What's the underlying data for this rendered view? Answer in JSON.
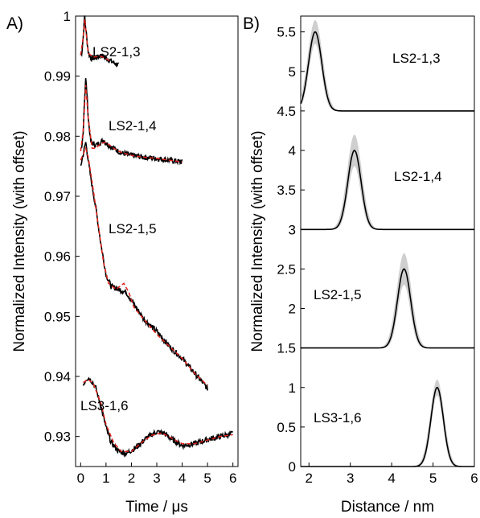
{
  "chart_data": [
    {
      "panel": "A)",
      "type": "line",
      "xlabel": "Time / μs",
      "ylabel": "Normalized Intensity (with offset)",
      "xlim": [
        -0.2,
        6.2
      ],
      "ylim": [
        0.925,
        1.0
      ],
      "xticks": [
        0,
        1,
        2,
        3,
        4,
        5,
        6
      ],
      "yticks": [
        0.93,
        0.94,
        0.95,
        0.96,
        0.97,
        0.98,
        0.99,
        1
      ],
      "ytick_labels": [
        "0.93",
        "0.94",
        "0.95",
        "0.96",
        "0.97",
        "0.98",
        "0.99",
        "1"
      ],
      "series_colors": {
        "data": "#000000",
        "fit": "#e0201b"
      },
      "series": [
        {
          "label": "LS2-1,3",
          "data": [
            [
              0,
              0.9935
            ],
            [
              0.05,
              0.994
            ],
            [
              0.1,
              0.9965
            ],
            [
              0.13,
              0.9985
            ],
            [
              0.16,
              1.0
            ],
            [
              0.2,
              0.998
            ],
            [
              0.3,
              0.994
            ],
            [
              0.4,
              0.993
            ],
            [
              0.6,
              0.993
            ],
            [
              0.8,
              0.9935
            ],
            [
              1.0,
              0.993
            ],
            [
              1.2,
              0.9925
            ],
            [
              1.5,
              0.9918
            ]
          ],
          "fit": [
            [
              0,
              0.9935
            ],
            [
              0.1,
              0.9965
            ],
            [
              0.16,
              0.9995
            ],
            [
              0.22,
              0.997
            ],
            [
              0.3,
              0.9938
            ],
            [
              0.5,
              0.9932
            ],
            [
              0.8,
              0.9933
            ],
            [
              1.0,
              0.9929
            ],
            [
              1.2,
              0.9924
            ]
          ]
        },
        {
          "label": "LS2-1,4",
          "data": [
            [
              0,
              0.9775
            ],
            [
              0.05,
              0.978
            ],
            [
              0.1,
              0.981
            ],
            [
              0.15,
              0.986
            ],
            [
              0.2,
              0.9895
            ],
            [
              0.25,
              0.987
            ],
            [
              0.3,
              0.983
            ],
            [
              0.4,
              0.979
            ],
            [
              0.6,
              0.9785
            ],
            [
              0.8,
              0.979
            ],
            [
              0.9,
              0.9795
            ],
            [
              1.0,
              0.9788
            ],
            [
              1.3,
              0.978
            ],
            [
              1.6,
              0.9772
            ],
            [
              2.0,
              0.9768
            ],
            [
              2.5,
              0.9765
            ],
            [
              3.0,
              0.9763
            ],
            [
              3.5,
              0.976
            ],
            [
              4.0,
              0.9757
            ]
          ],
          "fit": [
            [
              0,
              0.9775
            ],
            [
              0.1,
              0.981
            ],
            [
              0.2,
              0.9885
            ],
            [
              0.3,
              0.983
            ],
            [
              0.45,
              0.978
            ],
            [
              0.6,
              0.978
            ],
            [
              0.8,
              0.9788
            ],
            [
              1.0,
              0.979
            ],
            [
              1.3,
              0.978
            ],
            [
              1.6,
              0.9773
            ],
            [
              2.0,
              0.9768
            ],
            [
              2.5,
              0.9765
            ],
            [
              3.0,
              0.9763
            ],
            [
              3.5,
              0.976
            ],
            [
              4.0,
              0.9757
            ]
          ]
        },
        {
          "label": "LS2-1,5",
          "data": [
            [
              0,
              0.975
            ],
            [
              0.05,
              0.976
            ],
            [
              0.1,
              0.977
            ],
            [
              0.2,
              0.979
            ],
            [
              0.3,
              0.976
            ],
            [
              0.4,
              0.973
            ],
            [
              0.6,
              0.968
            ],
            [
              0.8,
              0.962
            ],
            [
              1.0,
              0.957
            ],
            [
              1.2,
              0.955
            ],
            [
              1.5,
              0.9545
            ],
            [
              1.8,
              0.954
            ],
            [
              2.1,
              0.952
            ],
            [
              2.5,
              0.9495
            ],
            [
              3.0,
              0.9475
            ],
            [
              3.5,
              0.945
            ],
            [
              4.0,
              0.943
            ],
            [
              4.5,
              0.9405
            ],
            [
              5.0,
              0.938
            ]
          ],
          "fit": [
            [
              0,
              0.976
            ],
            [
              0.1,
              0.977
            ],
            [
              0.2,
              0.978
            ],
            [
              0.3,
              0.9765
            ],
            [
              0.5,
              0.971
            ],
            [
              0.7,
              0.965
            ],
            [
              0.9,
              0.959
            ],
            [
              1.1,
              0.9555
            ],
            [
              1.4,
              0.9545
            ],
            [
              1.7,
              0.9555
            ],
            [
              1.9,
              0.954
            ],
            [
              2.1,
              0.9515
            ],
            [
              2.5,
              0.9495
            ],
            [
              3.0,
              0.947
            ],
            [
              3.5,
              0.945
            ],
            [
              4.0,
              0.943
            ],
            [
              4.5,
              0.9405
            ],
            [
              5.0,
              0.9385
            ]
          ]
        },
        {
          "label": "LS3-1,6",
          "data": [
            [
              0.1,
              0.9385
            ],
            [
              0.2,
              0.9395
            ],
            [
              0.3,
              0.9398
            ],
            [
              0.45,
              0.9392
            ],
            [
              0.6,
              0.938
            ],
            [
              0.8,
              0.935
            ],
            [
              1.0,
              0.9315
            ],
            [
              1.2,
              0.929
            ],
            [
              1.5,
              0.9275
            ],
            [
              1.8,
              0.9272
            ],
            [
              2.2,
              0.9282
            ],
            [
              2.6,
              0.9298
            ],
            [
              3.0,
              0.9308
            ],
            [
              3.3,
              0.9305
            ],
            [
              3.6,
              0.9295
            ],
            [
              4.0,
              0.9285
            ],
            [
              4.5,
              0.9288
            ],
            [
              5.0,
              0.9295
            ],
            [
              5.5,
              0.93
            ],
            [
              6.0,
              0.9305
            ]
          ],
          "fit": [
            [
              0.1,
              0.939
            ],
            [
              0.3,
              0.9395
            ],
            [
              0.5,
              0.9388
            ],
            [
              0.8,
              0.9355
            ],
            [
              1.0,
              0.932
            ],
            [
              1.3,
              0.929
            ],
            [
              1.6,
              0.9275
            ],
            [
              2.0,
              0.9275
            ],
            [
              2.4,
              0.929
            ],
            [
              2.8,
              0.9302
            ],
            [
              3.2,
              0.9306
            ],
            [
              3.6,
              0.9297
            ],
            [
              4.0,
              0.9288
            ],
            [
              4.5,
              0.9288
            ],
            [
              5.0,
              0.9294
            ],
            [
              5.5,
              0.93
            ],
            [
              6.0,
              0.9303
            ]
          ]
        }
      ]
    },
    {
      "panel": "B)",
      "type": "line",
      "xlabel": "Distance / nm",
      "ylabel": "Normalized Intensity (with offset)",
      "xlim": [
        1.8,
        6
      ],
      "ylim": [
        0,
        5.7
      ],
      "xticks": [
        2,
        3,
        4,
        5,
        6
      ],
      "yticks": [
        0,
        0.5,
        1,
        1.5,
        2,
        2.5,
        3,
        3.5,
        4,
        4.5,
        5,
        5.5
      ],
      "ytick_labels": [
        "0",
        "0.5",
        "1",
        "1.5",
        "2",
        "2.5",
        "3",
        "3.5",
        "4",
        "4.5",
        "5",
        "5.5"
      ],
      "series_colors": {
        "line": "#000000",
        "band": "#cfcfcf"
      },
      "distributions": [
        {
          "label": "LS2-1,3",
          "offset": 4.5,
          "center": 2.15,
          "width": 0.16,
          "peak": 1.0,
          "band_extra": 0.15
        },
        {
          "label": "LS2-1,4",
          "offset": 3.0,
          "center": 3.1,
          "width": 0.16,
          "peak": 1.0,
          "band_extra": 0.2
        },
        {
          "label": "LS2-1,5",
          "offset": 1.5,
          "center": 4.3,
          "width": 0.16,
          "peak": 1.0,
          "band_extra": 0.2
        },
        {
          "label": "LS3-1,6",
          "offset": 0.0,
          "center": 5.1,
          "width": 0.15,
          "peak": 1.0,
          "band_extra": 0.1
        }
      ]
    }
  ]
}
